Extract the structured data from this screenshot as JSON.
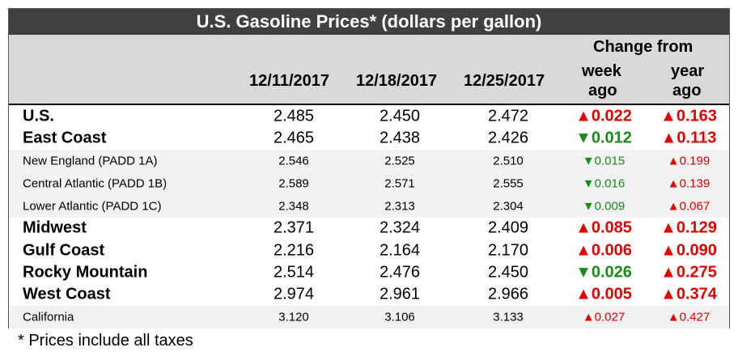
{
  "title": "U.S. Gasoline Prices* (dollars per gallon)",
  "headers": {
    "change_from": "Change from",
    "dates": [
      "12/11/2017",
      "12/18/2017",
      "12/25/2017"
    ],
    "week": "week",
    "year": "year",
    "ago": "ago"
  },
  "rows": [
    {
      "region": "U.S.",
      "type": "major",
      "values": [
        "2.485",
        "2.450",
        "2.472"
      ],
      "week_dir": "up",
      "week": "0.022",
      "year_dir": "up",
      "year": "0.163"
    },
    {
      "region": "East Coast",
      "type": "major",
      "values": [
        "2.465",
        "2.438",
        "2.426"
      ],
      "week_dir": "down",
      "week": "0.012",
      "year_dir": "up",
      "year": "0.113"
    },
    {
      "region": "New England (PADD 1A)",
      "type": "sub",
      "values": [
        "2.546",
        "2.525",
        "2.510"
      ],
      "week_dir": "down",
      "week": "0.015",
      "year_dir": "up",
      "year": "0.199"
    },
    {
      "region": "Central Atlantic (PADD 1B)",
      "type": "sub",
      "values": [
        "2.589",
        "2.571",
        "2.555"
      ],
      "week_dir": "down",
      "week": "0.016",
      "year_dir": "up",
      "year": "0.139"
    },
    {
      "region": "Lower Atlantic (PADD 1C)",
      "type": "sub",
      "values": [
        "2.348",
        "2.313",
        "2.304"
      ],
      "week_dir": "down",
      "week": "0.009",
      "year_dir": "up",
      "year": "0.067"
    },
    {
      "region": "Midwest",
      "type": "major",
      "values": [
        "2.371",
        "2.324",
        "2.409"
      ],
      "week_dir": "up",
      "week": "0.085",
      "year_dir": "up",
      "year": "0.129"
    },
    {
      "region": "Gulf Coast",
      "type": "major",
      "values": [
        "2.216",
        "2.164",
        "2.170"
      ],
      "week_dir": "up",
      "week": "0.006",
      "year_dir": "up",
      "year": "0.090"
    },
    {
      "region": "Rocky Mountain",
      "type": "major",
      "values": [
        "2.514",
        "2.476",
        "2.450"
      ],
      "week_dir": "down",
      "week": "0.026",
      "year_dir": "up",
      "year": "0.275"
    },
    {
      "region": "West Coast",
      "type": "major",
      "values": [
        "2.974",
        "2.961",
        "2.966"
      ],
      "week_dir": "up",
      "week": "0.005",
      "year_dir": "up",
      "year": "0.374"
    },
    {
      "region": "California",
      "type": "sub",
      "values": [
        "3.120",
        "3.106",
        "3.133"
      ],
      "week_dir": "up",
      "week": "0.027",
      "year_dir": "up",
      "year": "0.427"
    }
  ],
  "footnote": "* Prices include all taxes",
  "colors": {
    "up": "#e00000",
    "down": "#1a8a1a",
    "title_bg": "#404040",
    "header_bg": "#d9d9d9"
  }
}
